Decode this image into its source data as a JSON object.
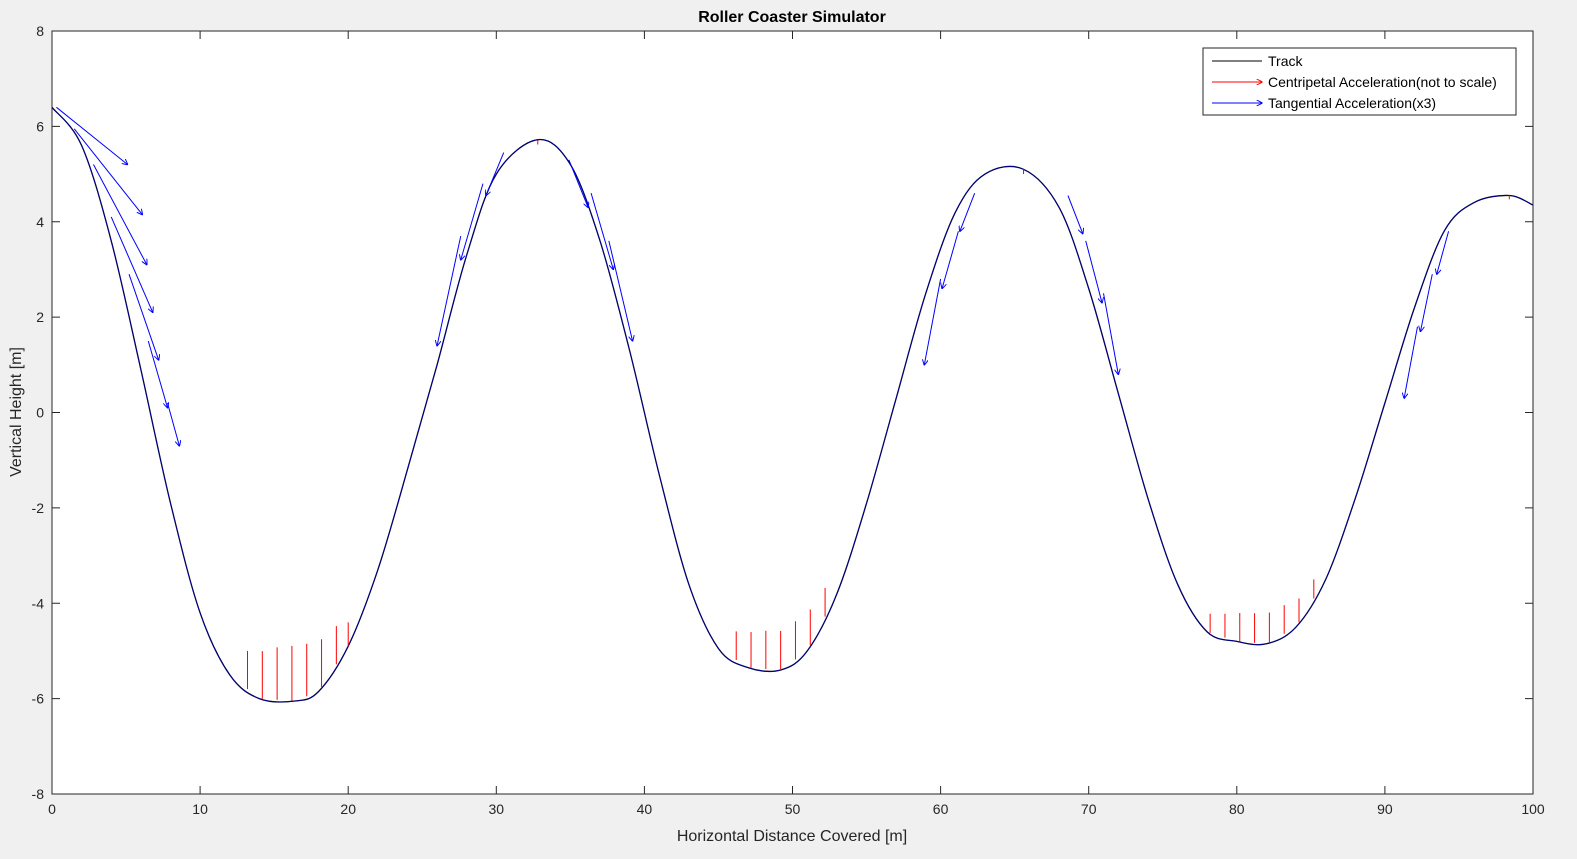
{
  "chart_data": {
    "type": "line",
    "title": "Roller Coaster Simulator",
    "xlabel": "Horizontal Distance Covered [m]",
    "ylabel": "Vertical Height [m]",
    "xlim": [
      0,
      100
    ],
    "ylim": [
      -8,
      8
    ],
    "xticks": [
      0,
      10,
      20,
      30,
      40,
      50,
      60,
      70,
      80,
      90,
      100
    ],
    "yticks": [
      -8,
      -6,
      -4,
      -2,
      0,
      2,
      4,
      6,
      8
    ],
    "grid": false,
    "legend_position": "top-right",
    "legend": [
      {
        "label": "Track",
        "color": "#000000",
        "arrow": false
      },
      {
        "label": "Centripetal Acceleration(not to scale)",
        "color": "#ff0000",
        "arrow": true
      },
      {
        "label": "Tangential Acceleration(x3)",
        "color": "#0000ff",
        "arrow": true
      }
    ],
    "series": [
      {
        "name": "Track",
        "color": "#000000",
        "x": [
          0,
          2,
          4,
          6,
          8,
          10,
          12,
          14,
          16.4,
          18,
          20,
          22,
          24,
          26,
          28,
          30,
          32.8,
          35,
          37,
          39,
          41,
          43,
          45,
          47,
          49.2,
          51,
          53,
          55,
          57,
          59,
          61,
          63,
          65.6,
          68,
          70,
          72,
          74,
          76,
          78,
          80,
          82,
          84,
          86,
          88,
          90,
          92,
          94,
          96,
          98.4,
          100
        ],
        "y": [
          6.4,
          5.6,
          3.6,
          0.9,
          -1.9,
          -4.2,
          -5.5,
          -6.0,
          -6.05,
          -5.85,
          -4.9,
          -3.3,
          -1.2,
          1.0,
          3.3,
          5.0,
          5.72,
          5.2,
          3.6,
          1.3,
          -1.3,
          -3.6,
          -4.95,
          -5.35,
          -5.4,
          -5.0,
          -3.8,
          -1.9,
          0.3,
          2.5,
          4.2,
          5.0,
          5.1,
          4.3,
          2.6,
          0.4,
          -1.8,
          -3.6,
          -4.6,
          -4.8,
          -4.85,
          -4.5,
          -3.5,
          -1.8,
          0.2,
          2.2,
          3.8,
          4.4,
          4.55,
          4.35
        ]
      }
    ],
    "centripetal_acceleration": [
      {
        "x": 13.2,
        "dy": 0.8
      },
      {
        "x": 14.2,
        "dy": 1.0
      },
      {
        "x": 15.2,
        "dy": 1.1
      },
      {
        "x": 16.2,
        "dy": 1.15
      },
      {
        "x": 17.2,
        "dy": 1.1
      },
      {
        "x": 18.2,
        "dy": 1.0
      },
      {
        "x": 19.2,
        "dy": 0.8
      },
      {
        "x": 20.0,
        "dy": 0.5
      },
      {
        "x": 46.2,
        "dy": 0.6
      },
      {
        "x": 47.2,
        "dy": 0.75
      },
      {
        "x": 48.2,
        "dy": 0.8
      },
      {
        "x": 49.2,
        "dy": 0.82
      },
      {
        "x": 50.2,
        "dy": 0.8
      },
      {
        "x": 51.2,
        "dy": 0.75
      },
      {
        "x": 52.2,
        "dy": 0.6
      },
      {
        "x": 78.2,
        "dy": 0.4
      },
      {
        "x": 79.2,
        "dy": 0.5
      },
      {
        "x": 80.2,
        "dy": 0.6
      },
      {
        "x": 81.2,
        "dy": 0.62
      },
      {
        "x": 82.2,
        "dy": 0.62
      },
      {
        "x": 83.2,
        "dy": 0.6
      },
      {
        "x": 84.2,
        "dy": 0.5
      },
      {
        "x": 85.2,
        "dy": 0.4
      },
      {
        "x": 32.8,
        "dy": -0.1
      },
      {
        "x": 65.6,
        "dy": -0.1
      },
      {
        "x": 98.4,
        "dy": -0.08
      }
    ],
    "tangential_acceleration": [
      {
        "x": 0.3,
        "y": 6.4,
        "dx": 4.8,
        "dy": -1.2
      },
      {
        "x": 1.5,
        "y": 5.95,
        "dx": 4.6,
        "dy": -1.8
      },
      {
        "x": 2.8,
        "y": 5.2,
        "dx": 3.6,
        "dy": -2.1
      },
      {
        "x": 4.0,
        "y": 4.1,
        "dx": 2.8,
        "dy": -2.0
      },
      {
        "x": 5.2,
        "y": 2.9,
        "dx": 2.0,
        "dy": -1.8
      },
      {
        "x": 6.5,
        "y": 1.5,
        "dx": 1.3,
        "dy": -1.4
      },
      {
        "x": 7.8,
        "y": 0.2,
        "dx": 0.8,
        "dy": -0.9
      },
      {
        "x": 27.6,
        "y": 3.7,
        "dx": -1.6,
        "dy": -2.3
      },
      {
        "x": 29.1,
        "y": 4.8,
        "dx": -1.5,
        "dy": -1.6
      },
      {
        "x": 30.5,
        "y": 5.45,
        "dx": -1.2,
        "dy": -0.9
      },
      {
        "x": 34.9,
        "y": 5.3,
        "dx": 1.3,
        "dy": -1.0
      },
      {
        "x": 36.4,
        "y": 4.6,
        "dx": 1.5,
        "dy": -1.6
      },
      {
        "x": 37.6,
        "y": 3.6,
        "dx": 1.6,
        "dy": -2.1
      },
      {
        "x": 60.0,
        "y": 2.8,
        "dx": -1.1,
        "dy": -1.8
      },
      {
        "x": 61.2,
        "y": 3.8,
        "dx": -1.1,
        "dy": -1.2
      },
      {
        "x": 62.3,
        "y": 4.6,
        "dx": -1.0,
        "dy": -0.8
      },
      {
        "x": 68.6,
        "y": 4.55,
        "dx": 1.0,
        "dy": -0.8
      },
      {
        "x": 69.8,
        "y": 3.6,
        "dx": 1.1,
        "dy": -1.3
      },
      {
        "x": 71.0,
        "y": 2.5,
        "dx": 1.0,
        "dy": -1.7
      },
      {
        "x": 92.2,
        "y": 1.8,
        "dx": -0.9,
        "dy": -1.5
      },
      {
        "x": 93.2,
        "y": 2.9,
        "dx": -0.8,
        "dy": -1.2
      },
      {
        "x": 94.3,
        "y": 3.8,
        "dx": -0.8,
        "dy": -0.9
      }
    ]
  }
}
